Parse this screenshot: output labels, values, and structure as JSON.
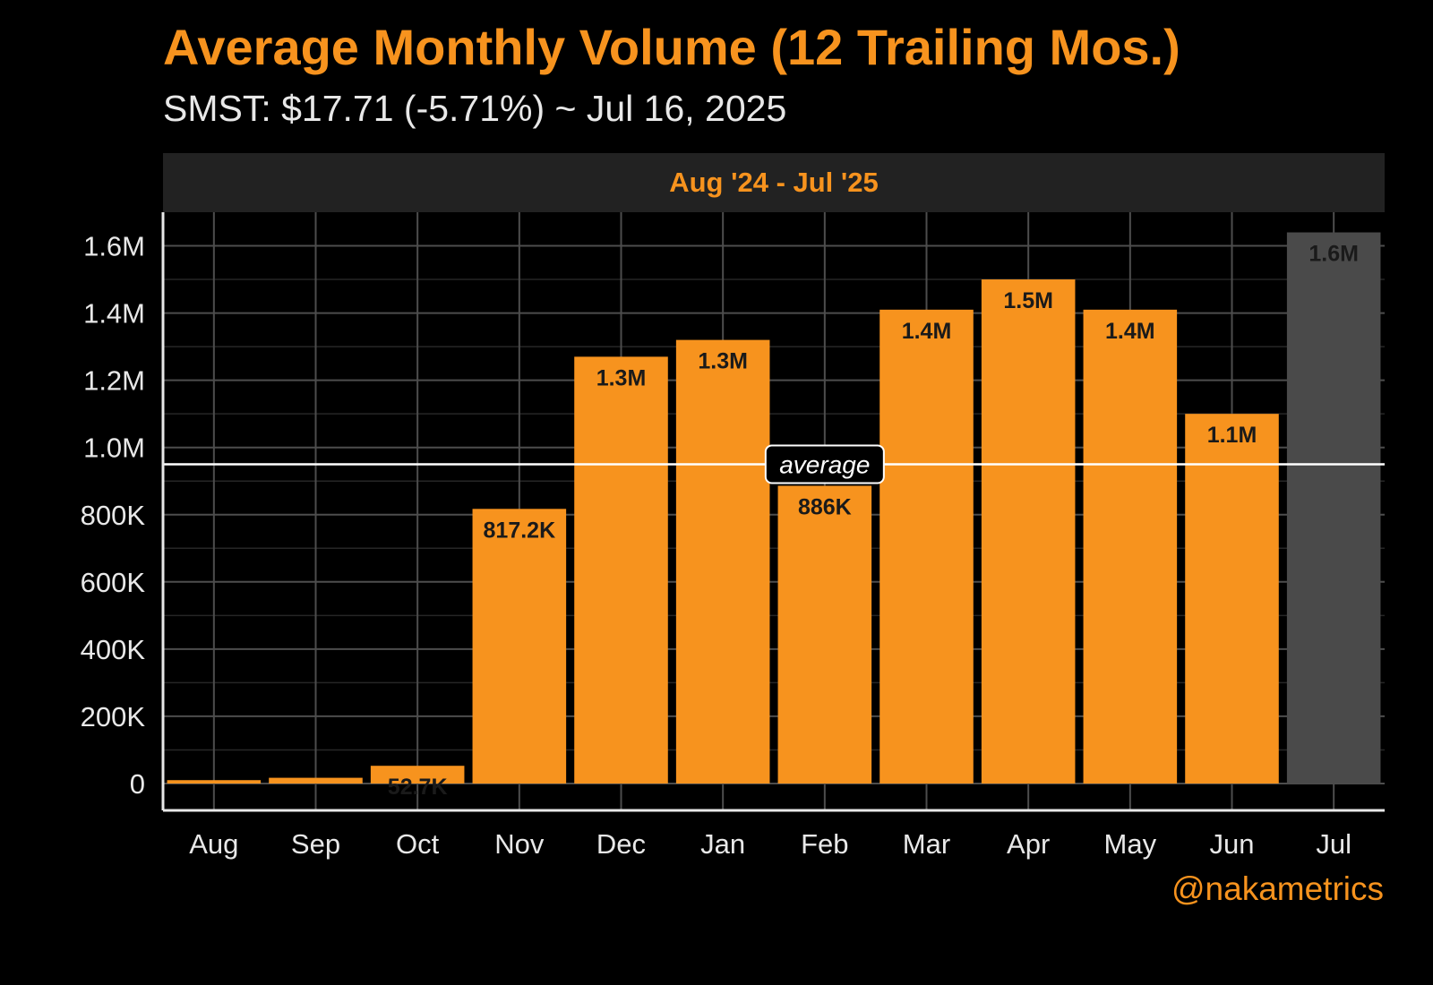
{
  "header": {
    "title": "Average Monthly Volume (12 Trailing Mos.)",
    "subtitle": "SMST: $17.71 (-5.71%) ~ Jul 16, 2025"
  },
  "chart_data": {
    "type": "bar",
    "panel_label": "Aug '24 - Jul '25",
    "categories": [
      "Aug",
      "Sep",
      "Oct",
      "Nov",
      "Dec",
      "Jan",
      "Feb",
      "Mar",
      "Apr",
      "May",
      "Jun",
      "Jul"
    ],
    "values": [
      10000,
      17000,
      52700,
      817200,
      1270000,
      1320000,
      886000,
      1410000,
      1500000,
      1410000,
      1100000,
      1640000
    ],
    "labels": [
      "",
      "",
      "52.7K",
      "817.2K",
      "1.3M",
      "1.3M",
      "886K",
      "1.4M",
      "1.5M",
      "1.4M",
      "1.1M",
      "1.6M"
    ],
    "ylim": [
      -80000,
      1700000
    ],
    "yticks": [
      0,
      200000,
      400000,
      600000,
      800000,
      1000000,
      1200000,
      1400000,
      1600000
    ],
    "ytick_labels": [
      "0",
      "200K",
      "400K",
      "600K",
      "800K",
      "1.0M",
      "1.2M",
      "1.4M",
      "1.6M"
    ],
    "average": 950000,
    "average_label": "average",
    "colors": {
      "complete": "#f7931e",
      "partial": "#4a4a4a",
      "label": "#1a1a1a",
      "average": "#ffffff"
    },
    "grid": true,
    "legend": "none"
  },
  "footer": {
    "credit": "@nakametrics"
  }
}
